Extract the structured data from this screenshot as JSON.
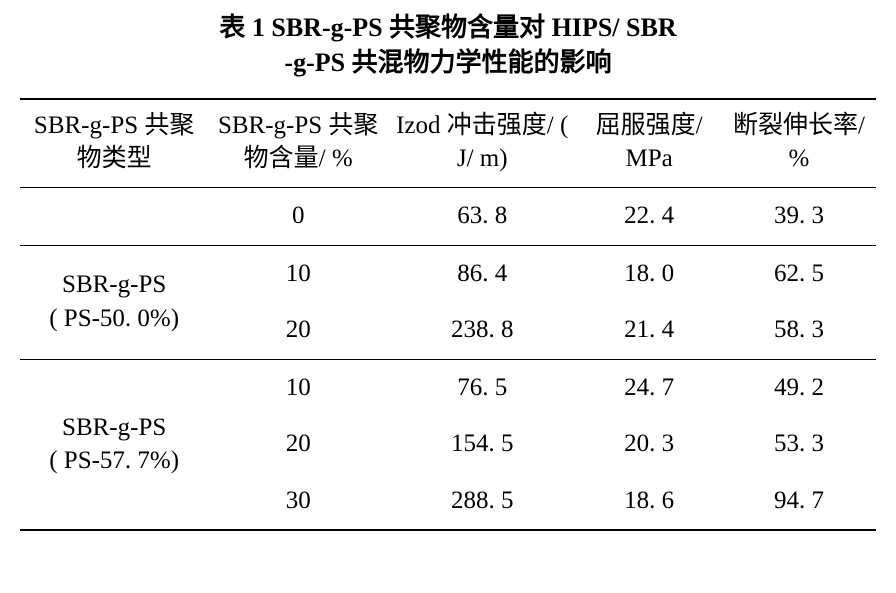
{
  "title": {
    "line1": "表 1    SBR-g-PS 共聚物含量对 HIPS/ SBR",
    "line2": "-g-PS 共混物力学性能的影响"
  },
  "table": {
    "columns": [
      {
        "header": "SBR-g-PS 共聚物类型"
      },
      {
        "header": "SBR-g-PS 共聚物含量/ %"
      },
      {
        "header": "Izod 冲击强度/ ( J/ m)"
      },
      {
        "header": "屈服强度/ MPa"
      },
      {
        "header": "断裂伸长率/ %"
      }
    ],
    "groups": [
      {
        "label_line1": "",
        "label_line2": "",
        "rows": [
          {
            "content": "0",
            "izod": "63. 8",
            "yield": "22. 4",
            "elong": "39. 3"
          }
        ]
      },
      {
        "label_line1": "SBR-g-PS",
        "label_line2": "( PS-50. 0%)",
        "rows": [
          {
            "content": "10",
            "izod": "86. 4",
            "yield": "18. 0",
            "elong": "62. 5"
          },
          {
            "content": "20",
            "izod": "238. 8",
            "yield": "21. 4",
            "elong": "58. 3"
          }
        ]
      },
      {
        "label_line1": "SBR-g-PS",
        "label_line2": "( PS-57. 7%)",
        "rows": [
          {
            "content": "10",
            "izod": "76. 5",
            "yield": "24. 7",
            "elong": "49. 2"
          },
          {
            "content": "20",
            "izod": "154. 5",
            "yield": "20. 3",
            "elong": "53. 3"
          },
          {
            "content": "30",
            "izod": "288. 5",
            "yield": "18. 6",
            "elong": "94. 7"
          }
        ]
      }
    ]
  }
}
